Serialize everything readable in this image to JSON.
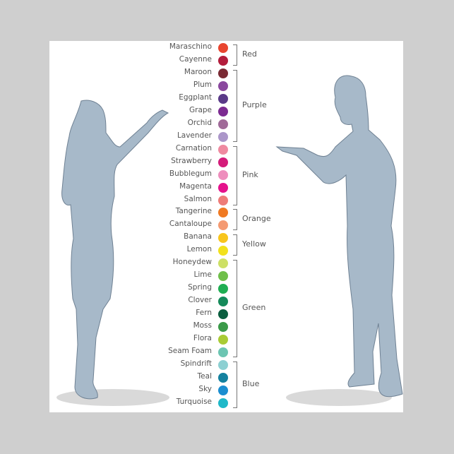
{
  "colors": [
    {
      "name": "Maraschino",
      "hex": "#e8452f"
    },
    {
      "name": "Cayenne",
      "hex": "#b31d3c"
    },
    {
      "name": "Maroon",
      "hex": "#7a2a34"
    },
    {
      "name": "Plum",
      "hex": "#8a489e"
    },
    {
      "name": "Eggplant",
      "hex": "#5a3a88"
    },
    {
      "name": "Grape",
      "hex": "#7c2b91"
    },
    {
      "name": "Orchid",
      "hex": "#a06a98"
    },
    {
      "name": "Lavender",
      "hex": "#ab96c9"
    },
    {
      "name": "Carnation",
      "hex": "#ef8aa0"
    },
    {
      "name": "Strawberry",
      "hex": "#d41c7a"
    },
    {
      "name": "Bubblegum",
      "hex": "#ee8ebd"
    },
    {
      "name": "Magenta",
      "hex": "#e5128c"
    },
    {
      "name": "Salmon",
      "hex": "#ee7c78"
    },
    {
      "name": "Tangerine",
      "hex": "#f07a23"
    },
    {
      "name": "Cantaloupe",
      "hex": "#f49a72"
    },
    {
      "name": "Banana",
      "hex": "#f8c51c"
    },
    {
      "name": "Lemon",
      "hex": "#f2e11c"
    },
    {
      "name": "Honeydew",
      "hex": "#cde065"
    },
    {
      "name": "Lime",
      "hex": "#6fbf4a"
    },
    {
      "name": "Spring",
      "hex": "#1fae52"
    },
    {
      "name": "Clover",
      "hex": "#158a5a"
    },
    {
      "name": "Fern",
      "hex": "#0b5e3f"
    },
    {
      "name": "Moss",
      "hex": "#3a9a48"
    },
    {
      "name": "Flora",
      "hex": "#a9cb35"
    },
    {
      "name": "Seam Foam",
      "hex": "#6cc5b2"
    },
    {
      "name": "Spindrift",
      "hex": "#8dd0d2"
    },
    {
      "name": "Teal",
      "hex": "#14819f"
    },
    {
      "name": "Sky",
      "hex": "#1b8ed0"
    },
    {
      "name": "Turquoise",
      "hex": "#1fb8c8"
    }
  ],
  "groups": [
    {
      "label": "Red",
      "from": 0,
      "to": 1
    },
    {
      "label": "Purple",
      "from": 2,
      "to": 7
    },
    {
      "label": "Pink",
      "from": 8,
      "to": 12
    },
    {
      "label": "Orange",
      "from": 13,
      "to": 14
    },
    {
      "label": "Yellow",
      "from": 15,
      "to": 16
    },
    {
      "label": "Green",
      "from": 17,
      "to": 24
    },
    {
      "label": "Blue",
      "from": 25,
      "to": 28
    }
  ],
  "figure_color": "#a7b9c9"
}
